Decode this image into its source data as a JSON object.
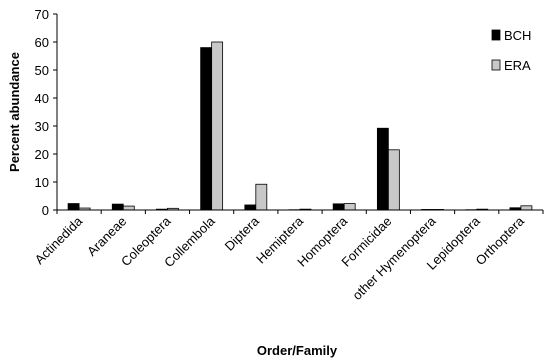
{
  "chart_data": {
    "type": "bar",
    "title": "",
    "xlabel": "Order/Family",
    "ylabel": "Percent abundance",
    "ylim": [
      0,
      70
    ],
    "yticks": [
      0,
      10,
      20,
      30,
      40,
      50,
      60,
      70
    ],
    "grid": false,
    "legend_position": "top-right",
    "categories": [
      "Actinedida",
      "Araneae",
      "Coleoptera",
      "Collembola",
      "Diptera",
      "Hemiptera",
      "Homoptera",
      "Formicidae",
      "other Hymenoptera",
      "Lepidoptera",
      "Orthoptera"
    ],
    "series": [
      {
        "name": "BCH",
        "color": "#000000",
        "values": [
          2.3,
          2.1,
          0.3,
          58.0,
          1.8,
          0.1,
          2.2,
          29.2,
          0.2,
          0.1,
          0.8
        ]
      },
      {
        "name": "ERA",
        "color": "#c8c8c8",
        "values": [
          0.7,
          1.4,
          0.6,
          60.0,
          9.2,
          0.3,
          2.3,
          21.5,
          0.2,
          0.3,
          1.5
        ]
      }
    ]
  }
}
